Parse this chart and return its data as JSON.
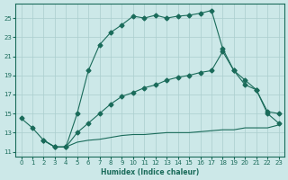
{
  "xlabel": "Humidex (Indice chaleur)",
  "background_color": "#cce8e8",
  "grid_color": "#aacece",
  "line_color": "#1a6b5a",
  "xlim": [
    -0.5,
    23.5
  ],
  "ylim": [
    10.5,
    26.5
  ],
  "xticks": [
    0,
    1,
    2,
    3,
    4,
    5,
    6,
    7,
    8,
    9,
    10,
    11,
    12,
    13,
    14,
    15,
    16,
    17,
    18,
    19,
    20,
    21,
    22,
    23
  ],
  "yticks": [
    11,
    13,
    15,
    17,
    19,
    21,
    23,
    25
  ],
  "series1_x": [
    0,
    1,
    2,
    3,
    4,
    5,
    6,
    7,
    8,
    9,
    10,
    11,
    12,
    13,
    14,
    15,
    16,
    17,
    18,
    19,
    20,
    21,
    22,
    23
  ],
  "series1_y": [
    14.5,
    13.5,
    12.2,
    11.5,
    11.5,
    15.0,
    19.5,
    22.2,
    23.5,
    24.3,
    25.2,
    25.0,
    25.3,
    25.0,
    25.2,
    25.3,
    25.5,
    25.8,
    21.8,
    19.5,
    18.0,
    17.5,
    15.0,
    14.0
  ],
  "series2_x": [
    2,
    3,
    4,
    5,
    6,
    7,
    8,
    9,
    10,
    11,
    12,
    13,
    14,
    15,
    16,
    17,
    18,
    19,
    20,
    21,
    22,
    23
  ],
  "series2_y": [
    12.2,
    11.5,
    11.5,
    13.0,
    14.0,
    15.0,
    16.0,
    16.8,
    17.2,
    17.7,
    18.0,
    18.5,
    18.8,
    19.0,
    19.3,
    19.5,
    21.5,
    19.5,
    18.5,
    17.5,
    15.2,
    15.0
  ],
  "series3_x": [
    2,
    3,
    4,
    5,
    6,
    7,
    8,
    9,
    10,
    11,
    12,
    13,
    14,
    15,
    16,
    17,
    18,
    19,
    20,
    21,
    22,
    23
  ],
  "series3_y": [
    12.2,
    11.5,
    11.5,
    12.0,
    12.2,
    12.3,
    12.5,
    12.7,
    12.8,
    12.8,
    12.9,
    13.0,
    13.0,
    13.0,
    13.1,
    13.2,
    13.3,
    13.3,
    13.5,
    13.5,
    13.5,
    13.8
  ]
}
